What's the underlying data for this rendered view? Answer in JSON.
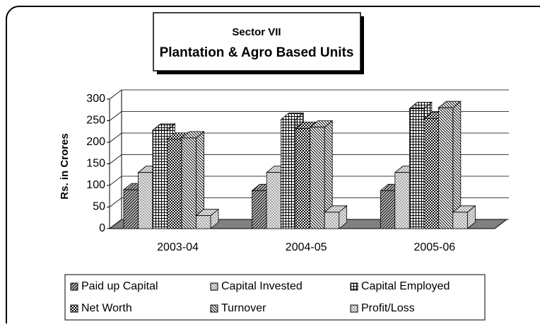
{
  "chart_data": {
    "type": "bar3d",
    "title": "Sector VII",
    "subtitle": "Plantation & Agro Based Units",
    "y_label": "Rs. in Crores",
    "categories": [
      "2003-04",
      "2004-05",
      "2005-06"
    ],
    "series": [
      {
        "name": "Paid up Capital",
        "color": "#c0c0c0",
        "values": [
          90,
          88,
          88
        ]
      },
      {
        "name": "Capital Invested",
        "color": "#e8e8e8",
        "values": [
          130,
          130,
          130
        ]
      },
      {
        "name": "Capital Employed",
        "color": "#ffffff",
        "values": [
          228,
          253,
          278
        ]
      },
      {
        "name": "Net Worth",
        "color": "#ffffff",
        "values": [
          207,
          232,
          255
        ]
      },
      {
        "name": "Turnover",
        "color": "#ffffff",
        "values": [
          210,
          235,
          280
        ]
      },
      {
        "name": "Profit/Loss",
        "color": "#f4f4f4",
        "values": [
          30,
          38,
          38
        ]
      }
    ],
    "ylim": [
      0,
      300
    ],
    "yticks": [
      0,
      50,
      100,
      150,
      200,
      250,
      300
    ],
    "grid": true
  }
}
